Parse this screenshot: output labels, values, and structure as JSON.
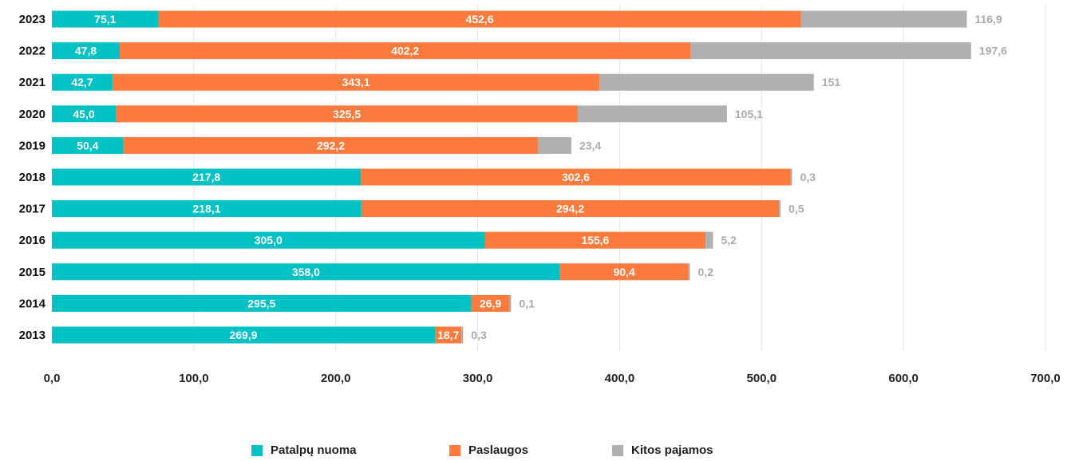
{
  "chart_data": {
    "type": "bar",
    "orientation": "horizontal",
    "stacked": true,
    "categories": [
      "2023",
      "2022",
      "2021",
      "2020",
      "2019",
      "2018",
      "2017",
      "2016",
      "2015",
      "2014",
      "2013"
    ],
    "series": [
      {
        "name": "Patalpų nuoma",
        "color": "#00c1c4",
        "values": [
          75.1,
          47.8,
          42.7,
          45.0,
          50.4,
          217.8,
          218.1,
          305.0,
          358.0,
          295.5,
          269.9
        ],
        "labels": [
          "75,1",
          "47,8",
          "42,7",
          "45,0",
          "50,4",
          "217,8",
          "218,1",
          "305,0",
          "358,0",
          "295,5",
          "269,9"
        ]
      },
      {
        "name": "Paslaugos",
        "color": "#ff7a3d",
        "values": [
          452.6,
          402.2,
          343.1,
          325.5,
          292.2,
          302.6,
          294.2,
          155.6,
          90.4,
          26.9,
          18.7
        ],
        "labels": [
          "452,6",
          "402,2",
          "343,1",
          "325,5",
          "292,2",
          "302,6",
          "294,2",
          "155,6",
          "90,4",
          "26,9",
          "18,7"
        ]
      },
      {
        "name": "Kitos pajamos",
        "color": "#b0b0b0",
        "values": [
          116.9,
          197.6,
          151,
          105.1,
          23.4,
          0.3,
          0.5,
          5.2,
          0.2,
          0.1,
          0.3
        ],
        "labels": [
          "116,9",
          "197,6",
          "151",
          "105,1",
          "23,4",
          "0,3",
          "0,5",
          "5,2",
          "0,2",
          "0,1",
          "0,3"
        ]
      }
    ],
    "xlim": [
      0,
      700
    ],
    "x_ticks": [
      0,
      100,
      200,
      300,
      400,
      500,
      600,
      700
    ],
    "x_tick_labels": [
      "0,0",
      "100,0",
      "200,0",
      "300,0",
      "400,0",
      "500,0",
      "600,0",
      "700,0"
    ],
    "grid": true,
    "legend_position": "bottom",
    "title": "",
    "xlabel": "",
    "ylabel": ""
  }
}
